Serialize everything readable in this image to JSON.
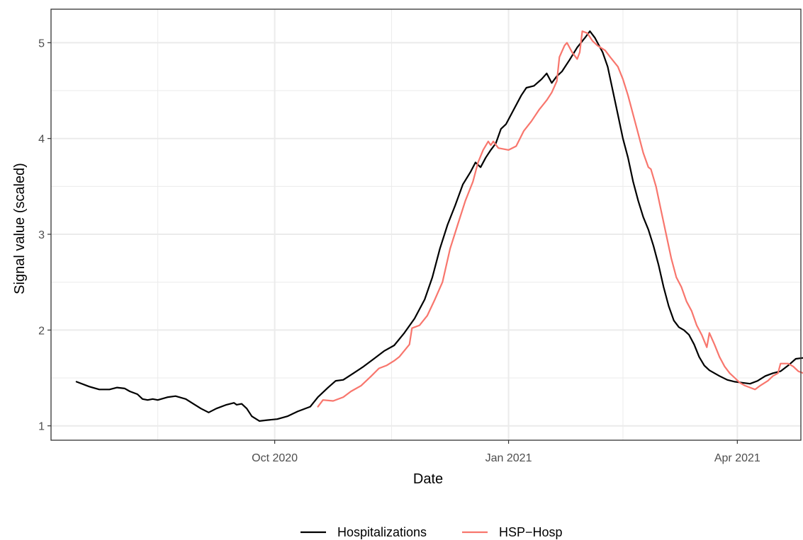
{
  "chart_data": {
    "type": "line",
    "title": "",
    "xlabel": "Date",
    "ylabel": "Signal value (scaled)",
    "xlim": [
      "2020-07-05",
      "2021-04-26"
    ],
    "ylim": [
      0.85,
      5.35
    ],
    "x_ticks": [
      {
        "date": "2020-10-01",
        "label": "Oct 2020"
      },
      {
        "date": "2021-01-01",
        "label": "Jan 2021"
      },
      {
        "date": "2021-04-01",
        "label": "Apr 2021"
      }
    ],
    "y_ticks": [
      1,
      2,
      3,
      4,
      5
    ],
    "grid": true,
    "legend_position": "bottom",
    "series": [
      {
        "name": "Hospitalizations",
        "color": "#000000",
        "points": [
          [
            "2020-07-15",
            1.46
          ],
          [
            "2020-07-20",
            1.41
          ],
          [
            "2020-07-24",
            1.38
          ],
          [
            "2020-07-28",
            1.38
          ],
          [
            "2020-07-31",
            1.4
          ],
          [
            "2020-08-03",
            1.39
          ],
          [
            "2020-08-05",
            1.36
          ],
          [
            "2020-08-08",
            1.33
          ],
          [
            "2020-08-10",
            1.28
          ],
          [
            "2020-08-12",
            1.27
          ],
          [
            "2020-08-14",
            1.28
          ],
          [
            "2020-08-16",
            1.27
          ],
          [
            "2020-08-20",
            1.3
          ],
          [
            "2020-08-23",
            1.31
          ],
          [
            "2020-08-27",
            1.28
          ],
          [
            "2020-08-30",
            1.23
          ],
          [
            "2020-09-02",
            1.18
          ],
          [
            "2020-09-05",
            1.14
          ],
          [
            "2020-09-08",
            1.18
          ],
          [
            "2020-09-12",
            1.22
          ],
          [
            "2020-09-15",
            1.24
          ],
          [
            "2020-09-16",
            1.22
          ],
          [
            "2020-09-18",
            1.23
          ],
          [
            "2020-09-20",
            1.18
          ],
          [
            "2020-09-22",
            1.1
          ],
          [
            "2020-09-25",
            1.05
          ],
          [
            "2020-09-28",
            1.06
          ],
          [
            "2020-10-02",
            1.07
          ],
          [
            "2020-10-06",
            1.1
          ],
          [
            "2020-10-10",
            1.15
          ],
          [
            "2020-10-15",
            1.2
          ],
          [
            "2020-10-18",
            1.3
          ],
          [
            "2020-10-22",
            1.4
          ],
          [
            "2020-10-25",
            1.47
          ],
          [
            "2020-10-28",
            1.48
          ],
          [
            "2020-11-01",
            1.55
          ],
          [
            "2020-11-05",
            1.62
          ],
          [
            "2020-11-09",
            1.7
          ],
          [
            "2020-11-13",
            1.78
          ],
          [
            "2020-11-17",
            1.84
          ],
          [
            "2020-11-21",
            1.97
          ],
          [
            "2020-11-25",
            2.12
          ],
          [
            "2020-11-29",
            2.32
          ],
          [
            "2020-12-02",
            2.55
          ],
          [
            "2020-12-05",
            2.85
          ],
          [
            "2020-12-08",
            3.1
          ],
          [
            "2020-12-11",
            3.3
          ],
          [
            "2020-12-14",
            3.52
          ],
          [
            "2020-12-17",
            3.65
          ],
          [
            "2020-12-19",
            3.75
          ],
          [
            "2020-12-21",
            3.7
          ],
          [
            "2020-12-23",
            3.8
          ],
          [
            "2020-12-25",
            3.88
          ],
          [
            "2020-12-27",
            3.95
          ],
          [
            "2020-12-29",
            4.1
          ],
          [
            "2020-12-31",
            4.15
          ],
          [
            "2021-01-03",
            4.3
          ],
          [
            "2021-01-06",
            4.45
          ],
          [
            "2021-01-08",
            4.53
          ],
          [
            "2021-01-11",
            4.55
          ],
          [
            "2021-01-14",
            4.62
          ],
          [
            "2021-01-16",
            4.68
          ],
          [
            "2021-01-18",
            4.58
          ],
          [
            "2021-01-20",
            4.65
          ],
          [
            "2021-01-22",
            4.7
          ],
          [
            "2021-01-25",
            4.82
          ],
          [
            "2021-01-28",
            4.95
          ],
          [
            "2021-01-31",
            5.05
          ],
          [
            "2021-02-02",
            5.12
          ],
          [
            "2021-02-04",
            5.05
          ],
          [
            "2021-02-07",
            4.9
          ],
          [
            "2021-02-09",
            4.75
          ],
          [
            "2021-02-11",
            4.5
          ],
          [
            "2021-02-13",
            4.25
          ],
          [
            "2021-02-15",
            4.0
          ],
          [
            "2021-02-17",
            3.8
          ],
          [
            "2021-02-19",
            3.55
          ],
          [
            "2021-02-21",
            3.35
          ],
          [
            "2021-02-23",
            3.18
          ],
          [
            "2021-02-25",
            3.05
          ],
          [
            "2021-02-27",
            2.88
          ],
          [
            "2021-03-01",
            2.68
          ],
          [
            "2021-03-03",
            2.45
          ],
          [
            "2021-03-05",
            2.25
          ],
          [
            "2021-03-07",
            2.1
          ],
          [
            "2021-03-09",
            2.03
          ],
          [
            "2021-03-11",
            2.0
          ],
          [
            "2021-03-13",
            1.95
          ],
          [
            "2021-03-15",
            1.85
          ],
          [
            "2021-03-17",
            1.72
          ],
          [
            "2021-03-19",
            1.63
          ],
          [
            "2021-03-21",
            1.58
          ],
          [
            "2021-03-23",
            1.55
          ],
          [
            "2021-03-25",
            1.52
          ],
          [
            "2021-03-28",
            1.48
          ],
          [
            "2021-03-31",
            1.46
          ],
          [
            "2021-04-03",
            1.45
          ],
          [
            "2021-04-06",
            1.44
          ],
          [
            "2021-04-09",
            1.47
          ],
          [
            "2021-04-12",
            1.52
          ],
          [
            "2021-04-15",
            1.55
          ],
          [
            "2021-04-18",
            1.57
          ],
          [
            "2021-04-21",
            1.63
          ],
          [
            "2021-04-24",
            1.7
          ],
          [
            "2021-04-27",
            1.71
          ],
          [
            "2021-04-30",
            1.72
          ]
        ]
      },
      {
        "name": "HSP−Hosp",
        "color": "#f8766d",
        "points": [
          [
            "2020-10-18",
            1.2
          ],
          [
            "2020-10-20",
            1.27
          ],
          [
            "2020-10-24",
            1.26
          ],
          [
            "2020-10-28",
            1.3
          ],
          [
            "2020-10-31",
            1.36
          ],
          [
            "2020-11-04",
            1.42
          ],
          [
            "2020-11-08",
            1.52
          ],
          [
            "2020-11-11",
            1.6
          ],
          [
            "2020-11-14",
            1.63
          ],
          [
            "2020-11-17",
            1.68
          ],
          [
            "2020-11-19",
            1.72
          ],
          [
            "2020-11-23",
            1.85
          ],
          [
            "2020-11-24",
            2.02
          ],
          [
            "2020-11-27",
            2.05
          ],
          [
            "2020-11-30",
            2.15
          ],
          [
            "2020-12-03",
            2.32
          ],
          [
            "2020-12-06",
            2.5
          ],
          [
            "2020-12-09",
            2.85
          ],
          [
            "2020-12-12",
            3.1
          ],
          [
            "2020-12-15",
            3.35
          ],
          [
            "2020-12-18",
            3.55
          ],
          [
            "2020-12-20",
            3.75
          ],
          [
            "2020-12-22",
            3.88
          ],
          [
            "2020-12-24",
            3.97
          ],
          [
            "2020-12-25",
            3.93
          ],
          [
            "2020-12-26",
            3.97
          ],
          [
            "2020-12-28",
            3.9
          ],
          [
            "2021-01-01",
            3.88
          ],
          [
            "2021-01-04",
            3.92
          ],
          [
            "2021-01-07",
            4.08
          ],
          [
            "2021-01-10",
            4.18
          ],
          [
            "2021-01-13",
            4.3
          ],
          [
            "2021-01-16",
            4.4
          ],
          [
            "2021-01-18",
            4.48
          ],
          [
            "2021-01-20",
            4.6
          ],
          [
            "2021-01-21",
            4.85
          ],
          [
            "2021-01-23",
            4.97
          ],
          [
            "2021-01-24",
            5.0
          ],
          [
            "2021-01-26",
            4.9
          ],
          [
            "2021-01-28",
            4.83
          ],
          [
            "2021-01-29",
            4.9
          ],
          [
            "2021-01-30",
            5.12
          ],
          [
            "2021-02-01",
            5.1
          ],
          [
            "2021-02-03",
            5.02
          ],
          [
            "2021-02-05",
            4.97
          ],
          [
            "2021-02-08",
            4.92
          ],
          [
            "2021-02-10",
            4.85
          ],
          [
            "2021-02-13",
            4.75
          ],
          [
            "2021-02-15",
            4.62
          ],
          [
            "2021-02-17",
            4.45
          ],
          [
            "2021-02-19",
            4.25
          ],
          [
            "2021-02-21",
            4.05
          ],
          [
            "2021-02-23",
            3.85
          ],
          [
            "2021-02-25",
            3.7
          ],
          [
            "2021-02-26",
            3.68
          ],
          [
            "2021-02-28",
            3.5
          ],
          [
            "2021-03-02",
            3.25
          ],
          [
            "2021-03-04",
            3.0
          ],
          [
            "2021-03-06",
            2.75
          ],
          [
            "2021-03-08",
            2.55
          ],
          [
            "2021-03-10",
            2.45
          ],
          [
            "2021-03-12",
            2.3
          ],
          [
            "2021-03-14",
            2.2
          ],
          [
            "2021-03-16",
            2.05
          ],
          [
            "2021-03-18",
            1.95
          ],
          [
            "2021-03-20",
            1.82
          ],
          [
            "2021-03-21",
            1.97
          ],
          [
            "2021-03-23",
            1.85
          ],
          [
            "2021-03-25",
            1.72
          ],
          [
            "2021-03-27",
            1.62
          ],
          [
            "2021-03-29",
            1.55
          ],
          [
            "2021-03-31",
            1.5
          ],
          [
            "2021-04-02",
            1.45
          ],
          [
            "2021-04-04",
            1.42
          ],
          [
            "2021-04-06",
            1.4
          ],
          [
            "2021-04-08",
            1.38
          ],
          [
            "2021-04-10",
            1.42
          ],
          [
            "2021-04-13",
            1.47
          ],
          [
            "2021-04-15",
            1.52
          ],
          [
            "2021-04-17",
            1.55
          ],
          [
            "2021-04-18",
            1.65
          ],
          [
            "2021-04-21",
            1.65
          ],
          [
            "2021-04-23",
            1.62
          ],
          [
            "2021-04-25",
            1.57
          ],
          [
            "2021-04-27",
            1.55
          ],
          [
            "2021-04-29",
            1.58
          ],
          [
            "2021-04-30",
            1.56
          ]
        ]
      }
    ]
  }
}
